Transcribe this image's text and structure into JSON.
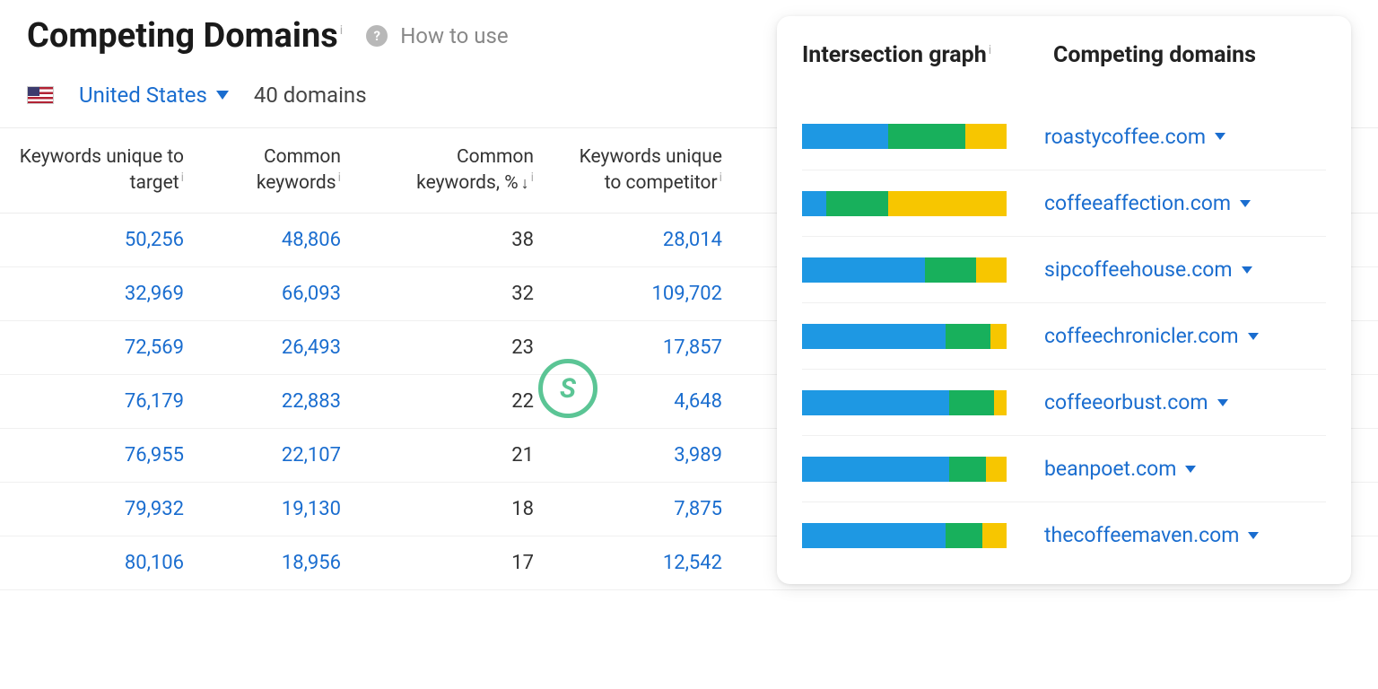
{
  "header": {
    "title": "Competing Domains",
    "how_to_use": "How to use"
  },
  "filters": {
    "country": "United States",
    "domain_count": "40 domains"
  },
  "columns": {
    "c1": "Keywords unique to target",
    "c2": "Common keywords",
    "c3": "Common keywords, %",
    "c4": "Keywords unique to competitor"
  },
  "rows": [
    {
      "unique_target": "50,256",
      "common": "48,806",
      "pct": "38",
      "unique_comp": "28,014"
    },
    {
      "unique_target": "32,969",
      "common": "66,093",
      "pct": "32",
      "unique_comp": "109,702"
    },
    {
      "unique_target": "72,569",
      "common": "26,493",
      "pct": "23",
      "unique_comp": "17,857"
    },
    {
      "unique_target": "76,179",
      "common": "22,883",
      "pct": "22",
      "unique_comp": "4,648"
    },
    {
      "unique_target": "76,955",
      "common": "22,107",
      "pct": "21",
      "unique_comp": "3,989"
    },
    {
      "unique_target": "79,932",
      "common": "19,130",
      "pct": "18",
      "unique_comp": "7,875"
    },
    {
      "unique_target": "80,106",
      "common": "18,956",
      "pct": "17",
      "unique_comp": "12,542"
    }
  ],
  "panel": {
    "heading_left": "Intersection graph",
    "heading_right": "Competing domains",
    "bar_colors": {
      "a": "#1e98e3",
      "b": "#18b05c",
      "c": "#f7c600"
    },
    "items": [
      {
        "domain": "roastycoffee.com",
        "seg": [
          42,
          38,
          20
        ]
      },
      {
        "domain": "coffeeaffection.com",
        "seg": [
          12,
          30,
          58
        ]
      },
      {
        "domain": "sipcoffeehouse.com",
        "seg": [
          60,
          25,
          15
        ]
      },
      {
        "domain": "coffeechronicler.com",
        "seg": [
          70,
          22,
          8
        ]
      },
      {
        "domain": "coffeeorbust.com",
        "seg": [
          72,
          22,
          6
        ]
      },
      {
        "domain": "beanpoet.com",
        "seg": [
          72,
          18,
          10
        ]
      },
      {
        "domain": "thecoffeemaven.com",
        "seg": [
          70,
          18,
          12
        ]
      }
    ]
  },
  "colors": {
    "link": "#1a6dcf",
    "text": "#333333",
    "border": "#ececec"
  }
}
